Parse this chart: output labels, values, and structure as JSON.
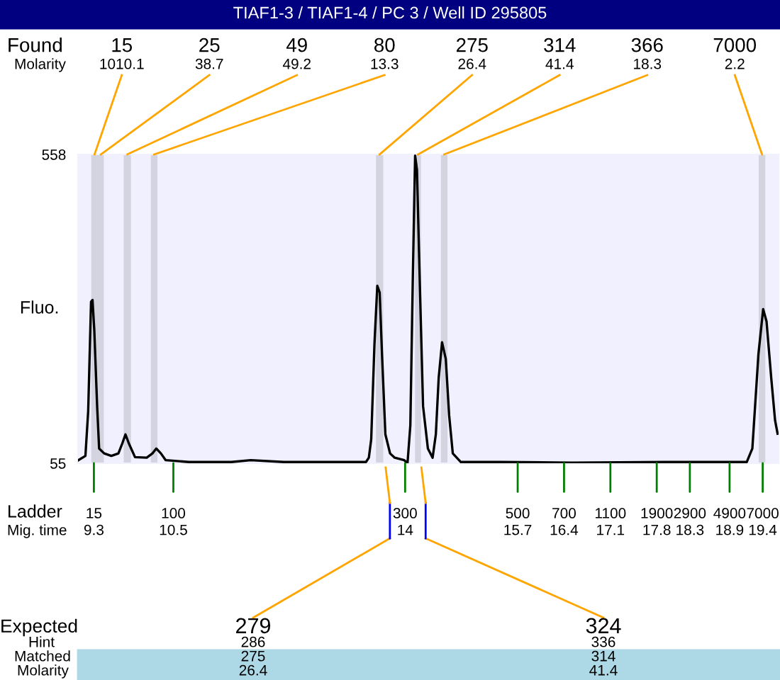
{
  "chart_data": {
    "type": "line",
    "title": "TIAF1-3 / TIAF1-4 / PC 3 / Well ID 295805",
    "ylabel": "Fluo.",
    "x": [
      9.065,
      9.172,
      9.214,
      9.257,
      9.279,
      9.306,
      9.349,
      9.379,
      9.456,
      9.563,
      9.67,
      9.728,
      9.777,
      9.829,
      9.921,
      10.098,
      10.184,
      10.242,
      10.312,
      10.385,
      10.734,
      11.376,
      11.669,
      12.168,
      13.409,
      13.452,
      13.488,
      13.537,
      13.58,
      13.616,
      13.651,
      13.702,
      13.773,
      13.843,
      13.987,
      14.036,
      14.079,
      14.115,
      14.151,
      14.179,
      14.222,
      14.271,
      14.344,
      14.415,
      14.464,
      14.507,
      14.558,
      14.614,
      14.665,
      14.72,
      14.842,
      15.448,
      16.518,
      17.945,
      18.872,
      19.159,
      19.244,
      19.336,
      19.407,
      19.458,
      19.529,
      19.587,
      19.625
    ],
    "series": [
      {
        "color": "#000000",
        "values": [
          60,
          67,
          140,
          318,
          321,
          272,
          148,
          79,
          71,
          67,
          71,
          87,
          102,
          87,
          65,
          64,
          71,
          79,
          71,
          60,
          57,
          57,
          60,
          57,
          57,
          64,
          94,
          249,
          344,
          333,
          233,
          102,
          71,
          64,
          60,
          55,
          117,
          348,
          556,
          533,
          348,
          148,
          79,
          64,
          102,
          194,
          252,
          225,
          133,
          71,
          57,
          57,
          56,
          57,
          57,
          57,
          79,
          233,
          306,
          286,
          194,
          125,
          103
        ]
      }
    ],
    "xlim": [
      9.06,
      19.64
    ],
    "ylim": [
      55,
      558
    ],
    "yticks": [
      55,
      558
    ],
    "xticks": [
      9.3,
      10.5,
      14,
      15.7,
      16.4,
      17.1,
      17.8,
      18.3,
      18.9,
      19.4
    ],
    "bands": [
      {
        "axis": "x",
        "from": 9.26,
        "to": 9.36,
        "label": "15\n1010.1",
        "color": "#d4d4e0"
      },
      {
        "axis": "x",
        "from": 9.36,
        "to": 9.45,
        "label": "25\n38.7",
        "color": "#d4d4e0"
      },
      {
        "axis": "x",
        "from": 9.75,
        "to": 9.86,
        "label": "49\n49.2",
        "color": "#d4d4e0"
      },
      {
        "axis": "x",
        "from": 10.16,
        "to": 10.26,
        "label": "80\n13.3",
        "color": "#d4d4e0"
      },
      {
        "axis": "x",
        "from": 13.56,
        "to": 13.67,
        "label": "275\n26.4",
        "color": "#d4d4e0"
      },
      {
        "axis": "x",
        "from": 14.15,
        "to": 14.24,
        "label": "314\n41.4",
        "color": "#d4d4e0"
      },
      {
        "axis": "x",
        "from": 14.54,
        "to": 14.64,
        "label": "366\n18.3",
        "color": "#d4d4e0"
      },
      {
        "axis": "x",
        "from": 19.34,
        "to": 19.44,
        "label": "7000\n2.2",
        "color": "#d4d4e0"
      }
    ],
    "annotations": [
      "Found",
      "Molarity",
      "Ladder",
      "Mig. time",
      "Expected",
      "Hint",
      "Matched",
      "Molarity",
      {
        "text": "15",
        "x": 9.3,
        "y": 55
      },
      {
        "text": "100",
        "x": 10.5,
        "y": 55
      },
      {
        "text": "300",
        "x": 14,
        "y": 55
      },
      {
        "text": "500",
        "x": 15.7,
        "y": 55
      },
      {
        "text": "700",
        "x": 16.4,
        "y": 55
      },
      {
        "text": "1100",
        "x": 17.1,
        "y": 55
      },
      {
        "text": "1900",
        "x": 17.8,
        "y": 55
      },
      {
        "text": "2900",
        "x": 18.3,
        "y": 55
      },
      {
        "text": "4900",
        "x": 18.9,
        "y": 55
      },
      {
        "text": "7000",
        "x": 19.4,
        "y": 55
      },
      {
        "text": "279\n286\n275\n26.4",
        "x": 13.77
      },
      {
        "text": "324\n336\n314\n41.4",
        "x": 14.31
      }
    ],
    "grid": false,
    "legend": false,
    "marker": "none",
    "line_style": "solid"
  }
}
